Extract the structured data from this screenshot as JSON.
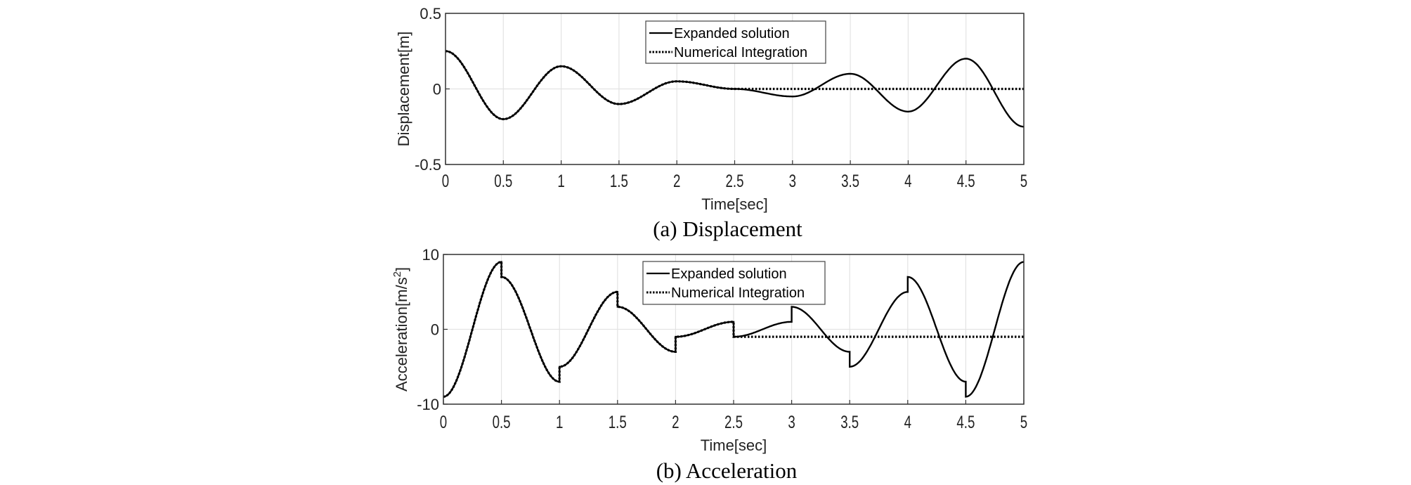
{
  "chart_data": [
    {
      "type": "line",
      "caption": "(a) Displacement",
      "xlabel": "Time[sec]",
      "ylabel": "Displacement[m]",
      "xlim": [
        0,
        5
      ],
      "ylim": [
        -0.5,
        0.5
      ],
      "xticks": [
        "0",
        "0.5",
        "1",
        "1.5",
        "2",
        "2.5",
        "3",
        "3.5",
        "4",
        "4.5",
        "5"
      ],
      "yticks": [
        "-0.5",
        "0",
        "0.5"
      ],
      "grid": true,
      "legend_position": "top-center",
      "series": [
        {
          "name": "Expanded solution",
          "style": "solid",
          "color": "#000000",
          "x": [
            0,
            0.5,
            1,
            1.5,
            2,
            2.5,
            3,
            3.5,
            4,
            4.5,
            5
          ],
          "y": [
            0.25,
            -0.2,
            0.15,
            -0.1,
            0.05,
            0,
            -0.05,
            0.1,
            -0.15,
            0.2,
            -0.25
          ]
        },
        {
          "name": "Numerical Integration",
          "style": "dotted",
          "color": "#000000",
          "x": [
            0,
            0.5,
            1,
            1.5,
            2,
            2.5,
            3,
            3.5,
            4,
            4.5,
            5
          ],
          "y": [
            0.25,
            -0.2,
            0.15,
            -0.1,
            0.05,
            0,
            0,
            0,
            0,
            0,
            0
          ]
        }
      ]
    },
    {
      "type": "line",
      "caption": "(b) Acceleration",
      "xlabel": "Time[sec]",
      "ylabel": "Acceleration[m/s",
      "ylabel_sup": "2",
      "ylabel_end": "]",
      "xlim": [
        0,
        5
      ],
      "ylim": [
        -10,
        10
      ],
      "xticks": [
        "0",
        "0.5",
        "1",
        "1.5",
        "2",
        "2.5",
        "3",
        "3.5",
        "4",
        "4.5",
        "5"
      ],
      "yticks": [
        "-10",
        "0",
        "10"
      ],
      "grid": true,
      "legend_position": "top-center",
      "series": [
        {
          "name": "Expanded solution",
          "style": "solid",
          "color": "#000000",
          "segments": [
            [
              0,
              0.5,
              -9,
              9
            ],
            [
              0.5,
              1,
              7,
              -7
            ],
            [
              1,
              1.5,
              -5,
              5
            ],
            [
              1.5,
              2,
              3,
              -3
            ],
            [
              2,
              2.5,
              -1,
              1
            ],
            [
              2.5,
              3,
              -1,
              1
            ],
            [
              3,
              3.5,
              3,
              -3
            ],
            [
              3.5,
              4,
              -5,
              5
            ],
            [
              4,
              4.5,
              7,
              -7
            ],
            [
              4.5,
              5,
              -9,
              9
            ]
          ]
        },
        {
          "name": "Numerical Integration",
          "style": "dotted",
          "color": "#000000",
          "segments": [
            [
              0,
              0.5,
              -9,
              9
            ],
            [
              0.5,
              1,
              7,
              -7
            ],
            [
              1,
              1.5,
              -5,
              5
            ],
            [
              1.5,
              2,
              3,
              -3
            ],
            [
              2,
              2.5,
              -1,
              1
            ],
            [
              2.5,
              5,
              -1,
              -1
            ]
          ]
        }
      ]
    }
  ]
}
